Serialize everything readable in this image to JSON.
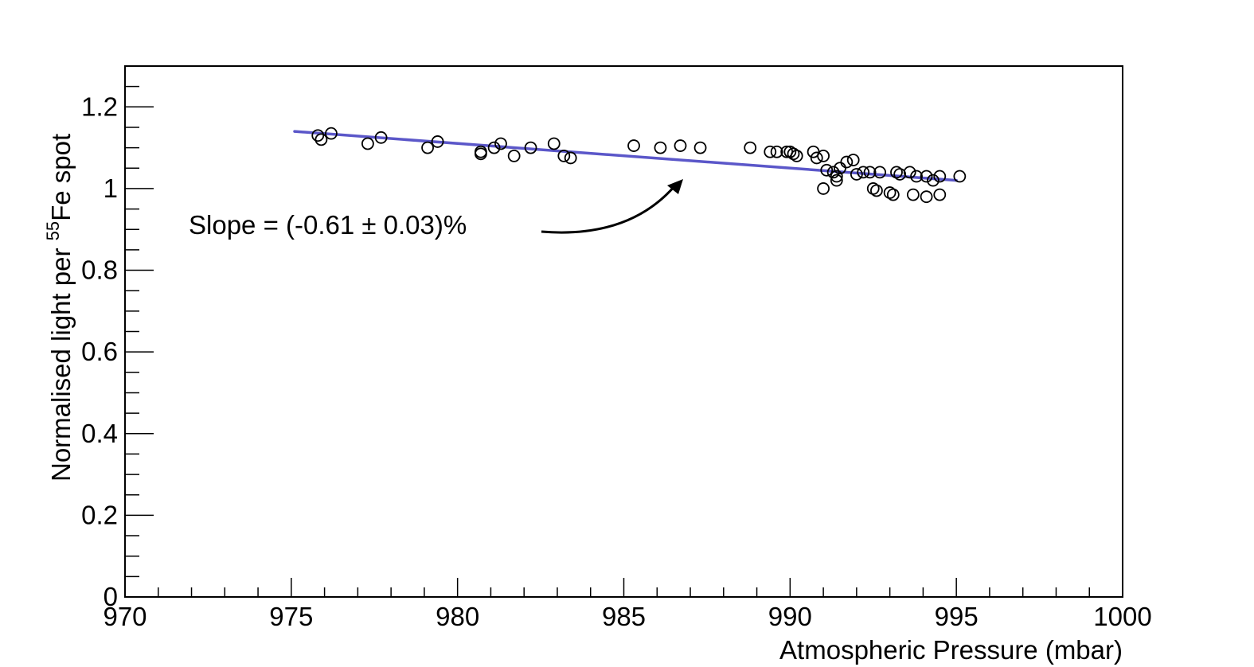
{
  "chart_data": {
    "type": "scatter",
    "title": "",
    "xlabel": "Atmospheric Pressure (mbar)",
    "ylabel": {
      "prefix": "Normalised light per ",
      "superscript": "55",
      "suffix": "Fe spot"
    },
    "xlim": [
      970,
      1000
    ],
    "ylim": [
      0,
      1.3
    ],
    "x_ticks": [
      970,
      975,
      980,
      985,
      990,
      995,
      1000
    ],
    "y_ticks": [
      0,
      0.2,
      0.4,
      0.6,
      0.8,
      1,
      1.2
    ],
    "x_tick_labels": [
      "970",
      "975",
      "980",
      "985",
      "990",
      "995",
      "1000"
    ],
    "y_tick_labels": [
      "0",
      "0.2",
      "0.4",
      "0.6",
      "0.8",
      "1",
      "1.2"
    ],
    "grid": false,
    "marker": "open-circle",
    "series": [
      {
        "points": [
          [
            975.8,
            1.13
          ],
          [
            975.9,
            1.12
          ],
          [
            976.2,
            1.135
          ],
          [
            977.3,
            1.11
          ],
          [
            977.7,
            1.125
          ],
          [
            979.1,
            1.1
          ],
          [
            979.4,
            1.115
          ],
          [
            980.7,
            1.09
          ],
          [
            980.7,
            1.085
          ],
          [
            981.1,
            1.1
          ],
          [
            981.3,
            1.11
          ],
          [
            981.7,
            1.08
          ],
          [
            982.2,
            1.1
          ],
          [
            982.9,
            1.11
          ],
          [
            983.2,
            1.08
          ],
          [
            983.4,
            1.075
          ],
          [
            985.3,
            1.105
          ],
          [
            986.1,
            1.1
          ],
          [
            986.7,
            1.105
          ],
          [
            987.3,
            1.1
          ],
          [
            988.8,
            1.1
          ],
          [
            989.4,
            1.09
          ],
          [
            989.6,
            1.09
          ],
          [
            989.9,
            1.09
          ],
          [
            990.0,
            1.09
          ],
          [
            990.1,
            1.085
          ],
          [
            990.2,
            1.08
          ],
          [
            990.7,
            1.09
          ],
          [
            990.8,
            1.075
          ],
          [
            991.0,
            1.08
          ],
          [
            991.0,
            1.0
          ],
          [
            991.1,
            1.045
          ],
          [
            991.3,
            1.04
          ],
          [
            991.4,
            1.03
          ],
          [
            991.4,
            1.02
          ],
          [
            991.5,
            1.05
          ],
          [
            991.7,
            1.065
          ],
          [
            991.9,
            1.07
          ],
          [
            992.0,
            1.035
          ],
          [
            992.2,
            1.04
          ],
          [
            992.4,
            1.04
          ],
          [
            992.5,
            1.0
          ],
          [
            992.6,
            0.995
          ],
          [
            992.7,
            1.04
          ],
          [
            993.0,
            0.99
          ],
          [
            993.1,
            0.985
          ],
          [
            993.2,
            1.04
          ],
          [
            993.3,
            1.035
          ],
          [
            993.6,
            1.04
          ],
          [
            993.8,
            1.03
          ],
          [
            993.7,
            0.985
          ],
          [
            994.1,
            1.03
          ],
          [
            994.1,
            0.98
          ],
          [
            994.3,
            1.02
          ],
          [
            994.5,
            0.985
          ],
          [
            994.5,
            1.03
          ],
          [
            995.1,
            1.03
          ]
        ]
      }
    ],
    "fit_line": {
      "color": "#5b57c9",
      "x": [
        975.1,
        995.0
      ],
      "y": [
        1.14,
        1.02
      ]
    },
    "annotation": {
      "text": "Slope = (-0.61 ± 0.03)%"
    }
  }
}
